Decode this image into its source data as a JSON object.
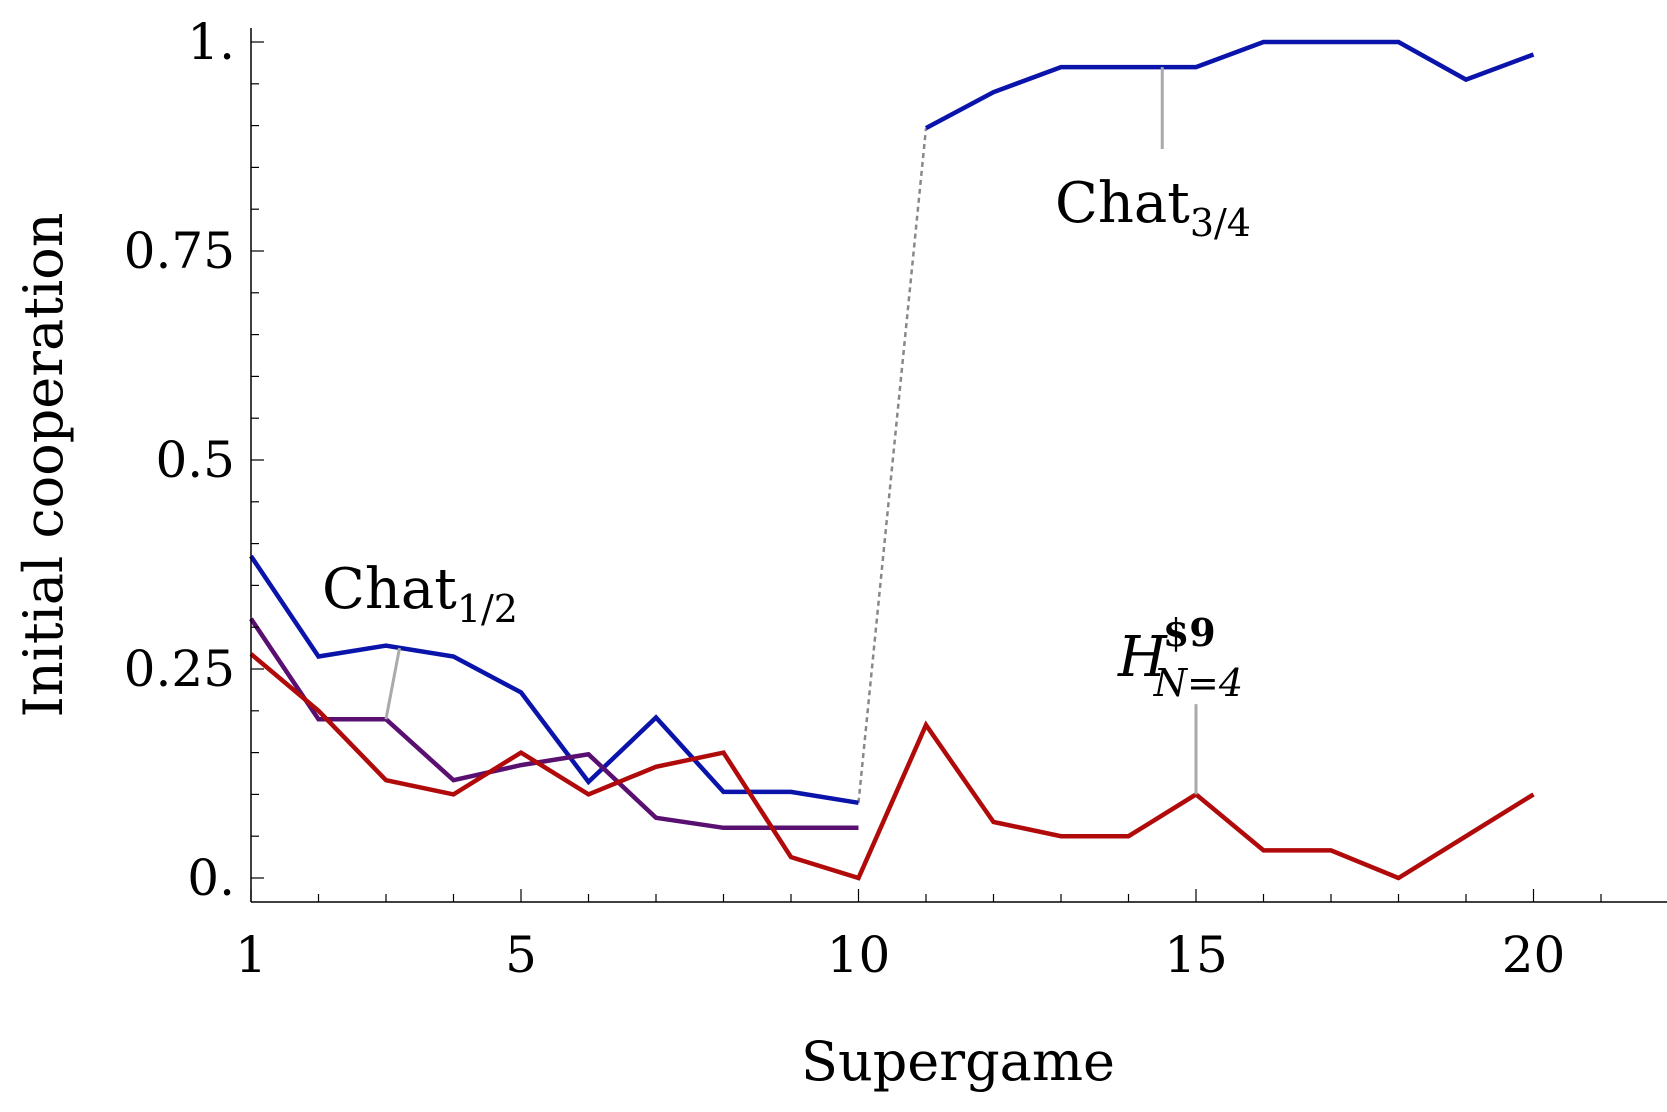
{
  "chart_data": {
    "type": "line",
    "title": "",
    "xlabel": "Supergame",
    "ylabel": "Initial cooperation",
    "xlim": [
      1,
      22
    ],
    "ylim": [
      0,
      1
    ],
    "x_ticks": [
      1,
      5,
      10,
      15,
      20
    ],
    "x_tick_labels": [
      "1",
      "5",
      "10",
      "15",
      "20"
    ],
    "y_ticks": [
      0,
      0.25,
      0.5,
      0.75,
      1
    ],
    "y_tick_labels": [
      "0.",
      "0.25",
      "0.5",
      "0.75",
      "1."
    ],
    "grid": false,
    "series": [
      {
        "color": "#0a14aa",
        "x": [
          1,
          2,
          3,
          4,
          5,
          6,
          7,
          8,
          9,
          10
        ],
        "y": [
          0.385,
          0.265,
          0.278,
          0.265,
          0.222,
          0.115,
          0.192,
          0.103,
          0.103,
          0.09
        ]
      },
      {
        "color": "#0a14aa",
        "x": [
          11,
          12,
          13,
          14,
          15,
          16,
          17,
          18,
          19,
          20
        ],
        "y": [
          0.897,
          0.94,
          0.97,
          0.97,
          0.97,
          1.0,
          1.0,
          1.0,
          0.955,
          0.985
        ]
      },
      {
        "color": "#5a1070",
        "x": [
          1,
          2,
          3,
          4,
          5,
          6,
          7,
          8,
          9,
          10
        ],
        "y": [
          0.31,
          0.19,
          0.19,
          0.117,
          0.135,
          0.148,
          0.072,
          0.06,
          0.06,
          0.06
        ]
      },
      {
        "color": "#b00a0a",
        "x": [
          1,
          2,
          3,
          4,
          5,
          6,
          7,
          8,
          9,
          10,
          11,
          12,
          13,
          14,
          15,
          16,
          17,
          18,
          19,
          20
        ],
        "y": [
          0.268,
          0.2,
          0.117,
          0.1,
          0.15,
          0.1,
          0.133,
          0.15,
          0.025,
          0.0,
          0.183,
          0.067,
          0.05,
          0.05,
          0.1,
          0.033,
          0.033,
          0.0,
          0.05,
          0.1
        ]
      }
    ],
    "connector": {
      "color": "#888888",
      "from": [
        10,
        0.09
      ],
      "to": [
        11,
        0.897
      ]
    },
    "annotations": [
      {
        "base": "Chat",
        "sub": "1/2",
        "sup": "",
        "italic": false,
        "point": [
          3.2,
          0.275
        ],
        "leader_end": [
          3.0,
          0.19
        ]
      },
      {
        "base": "Chat",
        "sub": "3/4",
        "sup": "",
        "italic": false,
        "point": [
          14.5,
          0.97
        ],
        "leader_end": [
          14.5,
          0.872
        ]
      },
      {
        "base": "H",
        "sub": "N=4",
        "sup": "$9",
        "italic": true,
        "point": [
          15,
          0.1
        ],
        "leader_end": [
          15,
          0.208
        ]
      }
    ]
  }
}
